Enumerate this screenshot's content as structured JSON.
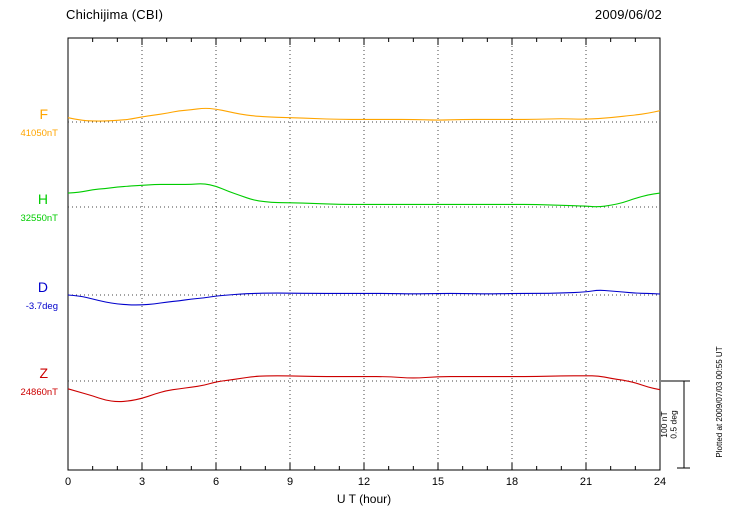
{
  "header": {
    "station": "Chichijima (CBI)",
    "date": "2009/06/02"
  },
  "footer": {
    "plotted_at": "Plotted at 2009/07/03 00:55 UT"
  },
  "chart_data": {
    "type": "line",
    "title": "Chichijima (CBI)",
    "date": "2009/06/02",
    "xlabel": "U T (hour)",
    "xlim": [
      0,
      24
    ],
    "xticks": [
      0,
      3,
      6,
      9,
      12,
      15,
      18,
      21,
      24
    ],
    "grid_hours": [
      3,
      6,
      9,
      12,
      15,
      18,
      21
    ],
    "scale_bar": {
      "labels": [
        "100 nT",
        "0.5 deg"
      ],
      "nt_per_bar": 100,
      "deg_per_bar": 0.5
    },
    "series": [
      {
        "name": "F",
        "baseline_label": "41050nT",
        "baseline_value": 41050,
        "unit": "nT",
        "color": "#FFA500",
        "points": [
          [
            0,
            5
          ],
          [
            0.5,
            2
          ],
          [
            1,
            1
          ],
          [
            1.5,
            1
          ],
          [
            2,
            2
          ],
          [
            2.5,
            3
          ],
          [
            3,
            6
          ],
          [
            3.5,
            8
          ],
          [
            4,
            10
          ],
          [
            4.5,
            13
          ],
          [
            5,
            14
          ],
          [
            5.5,
            16
          ],
          [
            6,
            15
          ],
          [
            6.5,
            12
          ],
          [
            7,
            9
          ],
          [
            7.5,
            7
          ],
          [
            8,
            6
          ],
          [
            9,
            5
          ],
          [
            10,
            4
          ],
          [
            11,
            3
          ],
          [
            12,
            3
          ],
          [
            13,
            3
          ],
          [
            14,
            3
          ],
          [
            15,
            2
          ],
          [
            16,
            3
          ],
          [
            17,
            3
          ],
          [
            18,
            3
          ],
          [
            19,
            3
          ],
          [
            20,
            4
          ],
          [
            21,
            3
          ],
          [
            22,
            5
          ],
          [
            23,
            8
          ],
          [
            23.5,
            10
          ],
          [
            24,
            13
          ]
        ]
      },
      {
        "name": "H",
        "baseline_label": "32550nT",
        "baseline_value": 32550,
        "unit": "nT",
        "color": "#00CC00",
        "points": [
          [
            0,
            16
          ],
          [
            0.5,
            17
          ],
          [
            1,
            20
          ],
          [
            1.5,
            21
          ],
          [
            2,
            23
          ],
          [
            2.5,
            24
          ],
          [
            3,
            25
          ],
          [
            3.5,
            26
          ],
          [
            4,
            26
          ],
          [
            4.5,
            26
          ],
          [
            5,
            26
          ],
          [
            5.5,
            27
          ],
          [
            6,
            24
          ],
          [
            6.5,
            18
          ],
          [
            7,
            13
          ],
          [
            7.5,
            8
          ],
          [
            8,
            6
          ],
          [
            8.5,
            5
          ],
          [
            9,
            5
          ],
          [
            10,
            4
          ],
          [
            11,
            3
          ],
          [
            12,
            3
          ],
          [
            13,
            3
          ],
          [
            14,
            3
          ],
          [
            15,
            3
          ],
          [
            16,
            3
          ],
          [
            17,
            3
          ],
          [
            18,
            3
          ],
          [
            19,
            3
          ],
          [
            20,
            2
          ],
          [
            21,
            1
          ],
          [
            21.5,
            0
          ],
          [
            22,
            2
          ],
          [
            22.5,
            5
          ],
          [
            23,
            10
          ],
          [
            23.5,
            14
          ],
          [
            24,
            16
          ]
        ]
      },
      {
        "name": "D",
        "baseline_label": "-3.7deg",
        "baseline_value": -3.7,
        "unit": "deg",
        "color": "#0000CC",
        "points": [
          [
            0,
            0
          ],
          [
            0.5,
            -0.006
          ],
          [
            1,
            -0.023
          ],
          [
            1.5,
            -0.04
          ],
          [
            2,
            -0.052
          ],
          [
            2.5,
            -0.057
          ],
          [
            3,
            -0.057
          ],
          [
            3.5,
            -0.052
          ],
          [
            4,
            -0.04
          ],
          [
            4.5,
            -0.034
          ],
          [
            5,
            -0.023
          ],
          [
            5.5,
            -0.017
          ],
          [
            6,
            -0.006
          ],
          [
            6.5,
            0
          ],
          [
            7,
            0.006
          ],
          [
            7.5,
            0.009
          ],
          [
            8,
            0.011
          ],
          [
            9,
            0.011
          ],
          [
            10,
            0.009
          ],
          [
            11,
            0.009
          ],
          [
            12,
            0.009
          ],
          [
            13,
            0.009
          ],
          [
            14,
            0.006
          ],
          [
            15,
            0.009
          ],
          [
            16,
            0.009
          ],
          [
            17,
            0.006
          ],
          [
            18,
            0.009
          ],
          [
            19,
            0.009
          ],
          [
            20,
            0.011
          ],
          [
            21,
            0.017
          ],
          [
            21.5,
            0.029
          ],
          [
            22,
            0.023
          ],
          [
            22.5,
            0.017
          ],
          [
            23,
            0.011
          ],
          [
            23.5,
            0.009
          ],
          [
            24,
            0.006
          ]
        ]
      },
      {
        "name": "Z",
        "baseline_label": "24860nT",
        "baseline_value": 24860,
        "unit": "nT",
        "color": "#CC0000",
        "points": [
          [
            0,
            -9
          ],
          [
            0.5,
            -13
          ],
          [
            1,
            -17
          ],
          [
            1.5,
            -22
          ],
          [
            2,
            -24
          ],
          [
            2.5,
            -23
          ],
          [
            3,
            -20
          ],
          [
            3.5,
            -15
          ],
          [
            4,
            -11
          ],
          [
            4.5,
            -9
          ],
          [
            5,
            -7
          ],
          [
            5.5,
            -5
          ],
          [
            6,
            -1
          ],
          [
            6.5,
            1
          ],
          [
            7,
            3
          ],
          [
            7.5,
            5
          ],
          [
            8,
            6
          ],
          [
            9,
            6
          ],
          [
            10,
            5
          ],
          [
            11,
            5
          ],
          [
            12,
            5
          ],
          [
            13,
            5
          ],
          [
            14,
            3
          ],
          [
            15,
            5
          ],
          [
            16,
            5
          ],
          [
            17,
            5
          ],
          [
            18,
            5
          ],
          [
            19,
            5
          ],
          [
            20,
            6
          ],
          [
            21,
            6
          ],
          [
            21.5,
            6
          ],
          [
            22,
            3
          ],
          [
            22.5,
            1
          ],
          [
            23,
            -2
          ],
          [
            23.5,
            -7
          ],
          [
            24,
            -10
          ]
        ]
      }
    ]
  }
}
